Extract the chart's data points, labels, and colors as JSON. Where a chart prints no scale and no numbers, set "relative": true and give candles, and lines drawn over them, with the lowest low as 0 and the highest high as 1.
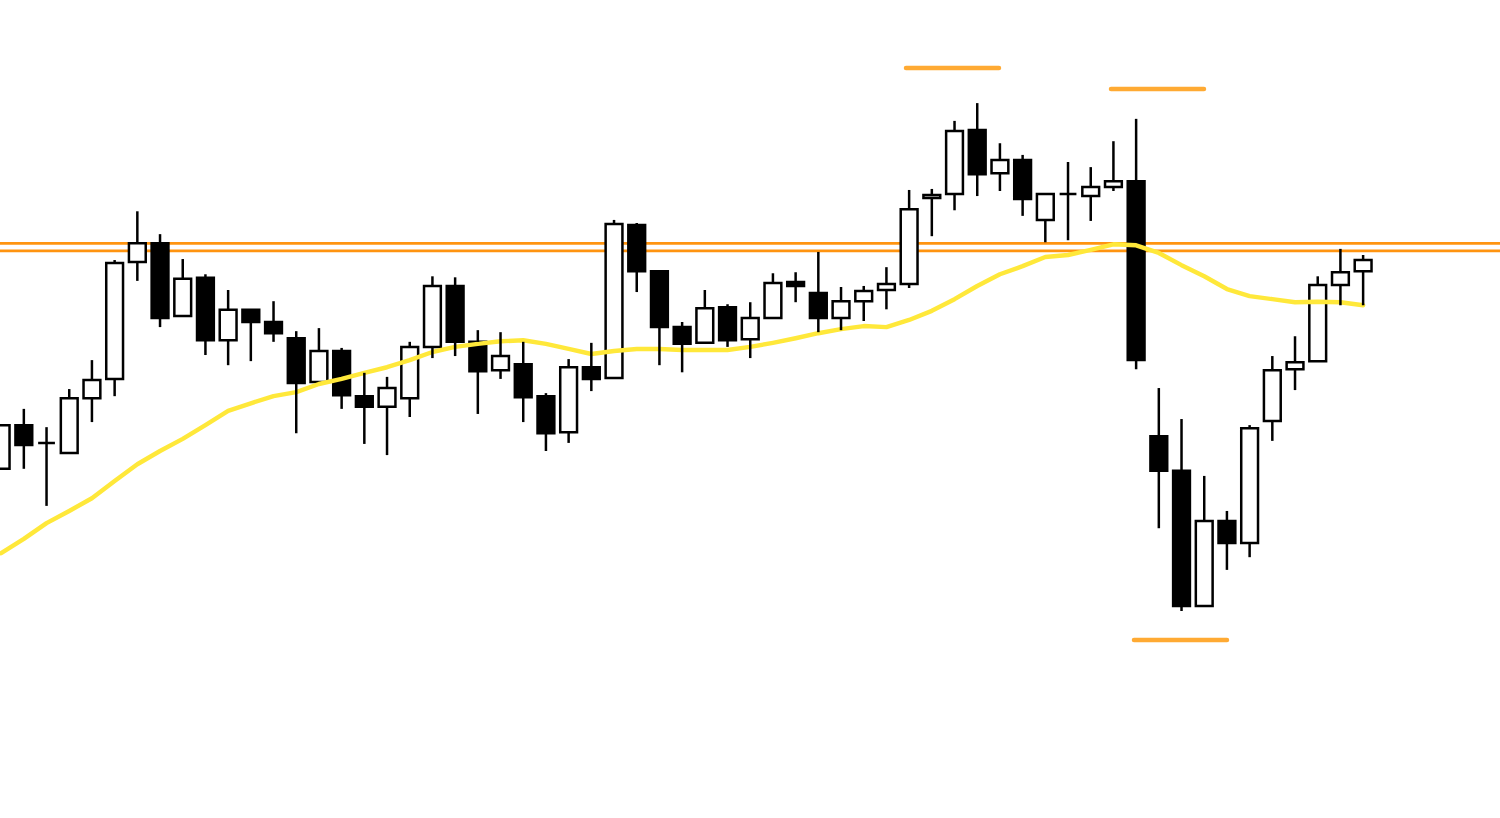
{
  "chart_data": {
    "type": "candlestick",
    "relative": true,
    "categories": [
      null,
      null,
      null,
      null,
      null,
      null,
      null,
      null,
      null,
      null,
      null,
      null,
      null,
      null,
      null,
      null,
      null,
      null,
      null,
      null,
      null,
      null,
      null,
      null,
      null,
      null,
      null,
      null,
      null,
      null,
      null,
      null,
      null,
      null,
      null,
      null,
      null,
      null,
      null,
      null,
      null,
      null,
      null,
      null,
      null,
      null,
      null,
      null,
      null,
      null,
      null,
      null,
      null,
      null,
      null,
      null,
      null,
      null,
      null,
      null,
      null
    ],
    "ohlc": [
      [
        0.28,
        0.366,
        0.28,
        0.366
      ],
      [
        0.366,
        0.398,
        0.28,
        0.327
      ],
      [
        0.331,
        0.362,
        0.207,
        0.331
      ],
      [
        0.311,
        0.437,
        0.311,
        0.419
      ],
      [
        0.419,
        0.494,
        0.372,
        0.455
      ],
      [
        0.457,
        0.691,
        0.423,
        0.685
      ],
      [
        0.687,
        0.787,
        0.65,
        0.724
      ],
      [
        0.724,
        0.742,
        0.559,
        0.577
      ],
      [
        0.581,
        0.693,
        0.581,
        0.654
      ],
      [
        0.656,
        0.663,
        0.504,
        0.533
      ],
      [
        0.533,
        0.632,
        0.484,
        0.593
      ],
      [
        0.593,
        0.593,
        0.492,
        0.569
      ],
      [
        0.569,
        0.61,
        0.53,
        0.547
      ],
      [
        0.537,
        0.551,
        0.35,
        0.449
      ],
      [
        0.451,
        0.557,
        0.451,
        0.512
      ],
      [
        0.512,
        0.518,
        0.398,
        0.425
      ],
      [
        0.423,
        0.469,
        0.329,
        0.402
      ],
      [
        0.402,
        0.461,
        0.307,
        0.439
      ],
      [
        0.419,
        0.53,
        0.382,
        0.52
      ],
      [
        0.52,
        0.659,
        0.498,
        0.64
      ],
      [
        0.64,
        0.657,
        0.502,
        0.53
      ],
      [
        0.53,
        0.553,
        0.388,
        0.472
      ],
      [
        0.474,
        0.549,
        0.457,
        0.502
      ],
      [
        0.486,
        0.53,
        0.372,
        0.421
      ],
      [
        0.423,
        0.429,
        0.315,
        0.35
      ],
      [
        0.352,
        0.496,
        0.331,
        0.48
      ],
      [
        0.48,
        0.528,
        0.433,
        0.457
      ],
      [
        0.459,
        0.77,
        0.459,
        0.762
      ],
      [
        0.76,
        0.764,
        0.628,
        0.669
      ],
      [
        0.669,
        0.671,
        0.484,
        0.559
      ],
      [
        0.559,
        0.569,
        0.47,
        0.526
      ],
      [
        0.528,
        0.632,
        0.528,
        0.596
      ],
      [
        0.598,
        0.604,
        0.52,
        0.533
      ],
      [
        0.535,
        0.608,
        0.498,
        0.577
      ],
      [
        0.577,
        0.665,
        0.575,
        0.646
      ],
      [
        0.648,
        0.667,
        0.608,
        0.64
      ],
      [
        0.626,
        0.707,
        0.549,
        0.577
      ],
      [
        0.577,
        0.638,
        0.553,
        0.61
      ],
      [
        0.61,
        0.64,
        0.571,
        0.63
      ],
      [
        0.632,
        0.677,
        0.594,
        0.644
      ],
      [
        0.644,
        0.829,
        0.636,
        0.791
      ],
      [
        0.813,
        0.831,
        0.738,
        0.819
      ],
      [
        0.821,
        0.965,
        0.789,
        0.945
      ],
      [
        0.947,
        1.0,
        0.817,
        0.86
      ],
      [
        0.862,
        0.921,
        0.827,
        0.888
      ],
      [
        0.888,
        0.898,
        0.778,
        0.811
      ],
      [
        0.77,
        0.823,
        0.726,
        0.821
      ],
      [
        0.821,
        0.884,
        0.73,
        0.821
      ],
      [
        0.817,
        0.874,
        0.768,
        0.835
      ],
      [
        0.835,
        0.925,
        0.827,
        0.846
      ],
      [
        0.846,
        0.969,
        0.476,
        0.494
      ],
      [
        0.344,
        0.439,
        0.163,
        0.276
      ],
      [
        0.276,
        0.378,
        0.0,
        0.01
      ],
      [
        0.01,
        0.266,
        0.008,
        0.177
      ],
      [
        0.177,
        0.197,
        0.081,
        0.134
      ],
      [
        0.134,
        0.366,
        0.106,
        0.36
      ],
      [
        0.374,
        0.502,
        0.335,
        0.474
      ],
      [
        0.476,
        0.541,
        0.435,
        0.49
      ],
      [
        0.492,
        0.659,
        0.492,
        0.642
      ],
      [
        0.642,
        0.713,
        0.602,
        0.667
      ],
      [
        0.669,
        0.701,
        0.602,
        0.691
      ]
    ],
    "series": [
      {
        "type": "line",
        "color": "#ffe83a",
        "values": [
          0.114,
          0.142,
          0.173,
          0.197,
          0.222,
          0.256,
          0.289,
          0.315,
          0.339,
          0.366,
          0.394,
          0.409,
          0.423,
          0.431,
          0.447,
          0.457,
          0.469,
          0.48,
          0.494,
          0.51,
          0.52,
          0.526,
          0.531,
          0.533,
          0.526,
          0.516,
          0.506,
          0.512,
          0.516,
          0.516,
          0.514,
          0.514,
          0.514,
          0.52,
          0.528,
          0.537,
          0.547,
          0.555,
          0.561,
          0.559,
          0.573,
          0.591,
          0.614,
          0.64,
          0.663,
          0.679,
          0.697,
          0.701,
          0.711,
          0.722,
          0.72,
          0.705,
          0.681,
          0.659,
          0.634,
          0.62,
          0.614,
          0.608,
          0.609,
          0.608,
          0.602
        ]
      }
    ],
    "ref_lines": [
      {
        "axis": "y",
        "value": 0.724,
        "color": "#ff9410"
      },
      {
        "axis": "y",
        "value": 0.709,
        "color": "#ff9410"
      }
    ]
  }
}
